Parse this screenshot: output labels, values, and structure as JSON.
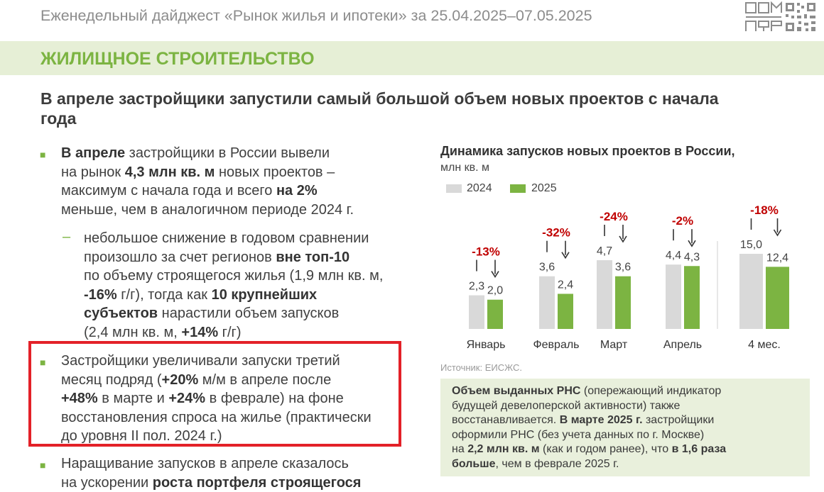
{
  "header": {
    "title": "Еженедельный дайджест «Рынок жилья и ипотеки» за 25.04.2025–07.05.2025",
    "logo_text": "ДОМ РФ",
    "logo_icon": "qr-code-icon"
  },
  "section": {
    "title": "ЖИЛИЩНОЕ СТРОИТЕЛЬСТВО"
  },
  "headline": {
    "line1": "В апреле застройщики запустили самый большой объем новых проектов с начала",
    "line2": "года"
  },
  "bullets": {
    "b1": {
      "l1a": "В апреле",
      "l1b": " застройщики в России вывели",
      "l2a": "на рынок ",
      "l2b": "4,3 млн кв. м",
      "l2c": " новых проектов –",
      "l3a": "максимум с начала года и всего ",
      "l3b": "на 2%",
      "l4": "меньше, чем в аналогичном периоде 2024 г."
    },
    "sub1": {
      "dash": "–",
      "l1": "небольшое снижение в годовом сравнении",
      "l2a": "произошло за счет регионов ",
      "l2b": "вне топ-10",
      "l3": "по объему строящегося жилья (1,9 млн кв. м,",
      "l4a": "-16%",
      "l4b": " г/г), тогда как ",
      "l4c": "10 крупнейших",
      "l5a": "субъектов",
      "l5b": " нарастили объем запусков",
      "l6a": "(2,4 млн кв. м, ",
      "l6b": "+14%",
      "l6c": " г/г)"
    },
    "b2": {
      "l1": "Застройщики увеличивали запуски третий",
      "l2a": "месяц подряд (",
      "l2b": "+20%",
      "l2c": " м/м в апреле после",
      "l3a": "+48%",
      "l3b": " в марте и ",
      "l3c": "+24%",
      "l3d": " в феврале) на фоне",
      "l4": "восстановления спроса на жилье (практически",
      "l5": "до уровня II пол. 2024 г.)"
    },
    "b3": {
      "l1": "Наращивание запусков в апреле сказалось",
      "l2a": "на ускорении ",
      "l2b": "роста портфеля строящегося"
    }
  },
  "chart_data": {
    "type": "bar",
    "title": "Динамика запусков новых проектов в России,",
    "ylabel": "млн кв. м",
    "legend_position": "top-left",
    "categories": [
      "Январь",
      "Февраль",
      "Март",
      "Апрель",
      "4 мес."
    ],
    "series": [
      {
        "name": "2024",
        "color": "#d9d9d9",
        "values": [
          2.3,
          3.6,
          4.7,
          4.4,
          15.0
        ],
        "labels": [
          "2,3",
          "3,6",
          "4,7",
          "4,4",
          "15,0"
        ]
      },
      {
        "name": "2025",
        "color": "#7cb442",
        "values": [
          2.0,
          2.4,
          3.6,
          4.3,
          12.4
        ],
        "labels": [
          "2,0",
          "2,4",
          "3,6",
          "4,3",
          "12,4"
        ]
      }
    ],
    "changes": [
      "-13%",
      "-32%",
      "-24%",
      "-2%",
      "-18%"
    ],
    "annotation_color": "#c00000",
    "grid": false
  },
  "source": "Источник: ЕИСЖС.",
  "note": {
    "l1a": "Объем выданных РНС",
    "l1b": " (опережающий индикатор",
    "l2": "будущей девелоперской активности) также",
    "l3a": "восстанавливается. ",
    "l3b": "В марте 2025 г.",
    "l3c": " застройщики",
    "l4": "оформили РНС (без учета данных по г. Москве)",
    "l5a": "на ",
    "l5b": "2,2 млн кв. м",
    "l5c": " (как и годом ранее), что ",
    "l5d": "в 1,6 раза",
    "l6a": "больше",
    "l6b": ", чем в феврале 2025 г."
  },
  "colors": {
    "accent_green": "#7cb442",
    "highlight_red": "#e32128",
    "bar_gray": "#d9d9d9"
  }
}
